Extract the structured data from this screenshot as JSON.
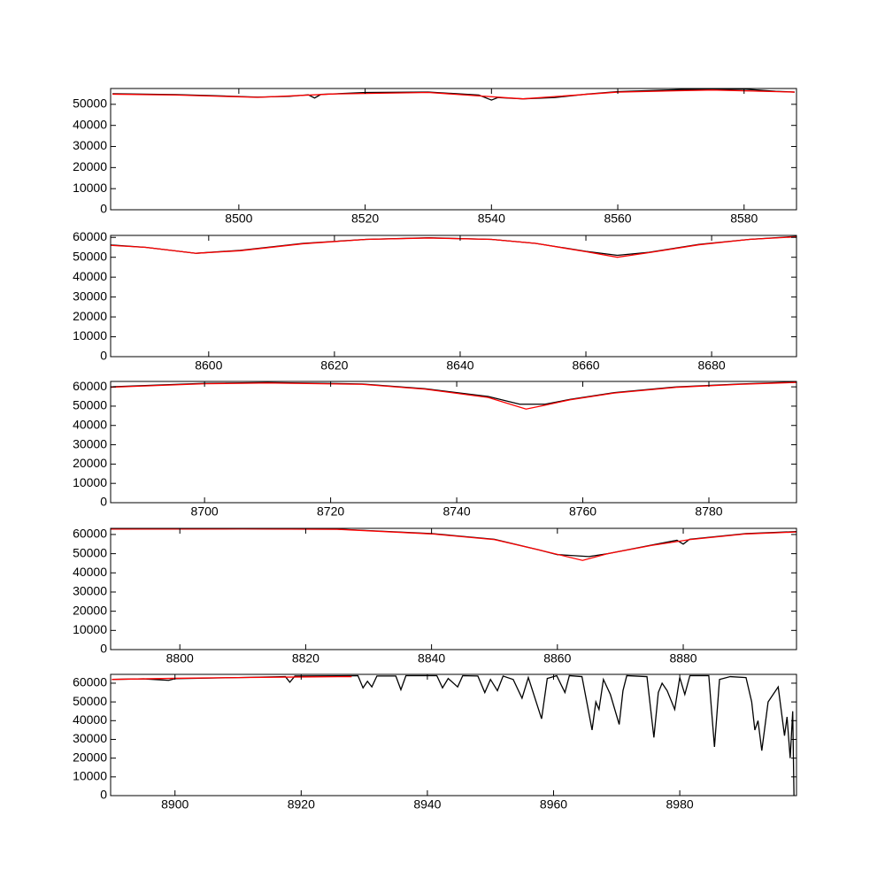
{
  "chart_data": [
    {
      "type": "line",
      "xlim": [
        8479.7,
        8588.3
      ],
      "ylim": [
        0,
        57500
      ],
      "xticks": [
        8500,
        8520,
        8540,
        8560,
        8580
      ],
      "yticks": [
        0,
        10000,
        20000,
        30000,
        40000,
        50000
      ],
      "series": [
        {
          "color": "#000000",
          "x": [
            8480,
            8490,
            8495,
            8503,
            8508,
            8511,
            8512,
            8513,
            8520,
            8530,
            8538,
            8540,
            8541,
            8545,
            8550,
            8555,
            8560,
            8570,
            8580,
            8585,
            8588
          ],
          "values": [
            55000,
            54600,
            54200,
            53400,
            53800,
            54500,
            53000,
            54700,
            55600,
            55800,
            54400,
            52000,
            53200,
            52600,
            53200,
            54800,
            56000,
            57000,
            57200,
            56200,
            55800
          ]
        },
        {
          "color": "#ff0000",
          "x": [
            8480,
            8490,
            8503,
            8515,
            8530,
            8545,
            8560,
            8575,
            8588
          ],
          "values": [
            54800,
            54400,
            53300,
            54900,
            55600,
            52600,
            55800,
            56800,
            55800
          ]
        }
      ]
    },
    {
      "type": "line",
      "xlim": [
        8584.4,
        8693.5
      ],
      "ylim": [
        0,
        61000
      ],
      "xticks": [
        8600,
        8620,
        8640,
        8660,
        8680
      ],
      "yticks": [
        0,
        10000,
        20000,
        30000,
        40000,
        50000,
        60000
      ],
      "series": [
        {
          "color": "#000000",
          "x": [
            8584.4,
            8590,
            8598,
            8605,
            8615,
            8625,
            8635,
            8645,
            8652,
            8660,
            8665,
            8670,
            8678,
            8686,
            8693.5
          ],
          "values": [
            56200,
            55000,
            52000,
            53500,
            57000,
            59000,
            59800,
            59000,
            57000,
            53000,
            51000,
            52500,
            56500,
            59000,
            60500
          ]
        },
        {
          "color": "#ff0000",
          "x": [
            8584.4,
            8590,
            8598,
            8605,
            8615,
            8625,
            8635,
            8645,
            8652,
            8660,
            8665,
            8670,
            8678,
            8686,
            8693.5
          ],
          "values": [
            56000,
            55000,
            52000,
            53300,
            56800,
            59000,
            59700,
            59000,
            57000,
            52800,
            50000,
            52300,
            56300,
            59000,
            60300
          ]
        }
      ]
    },
    {
      "type": "line",
      "xlim": [
        8685.1,
        8793.9
      ],
      "ylim": [
        0,
        62800
      ],
      "xticks": [
        8700,
        8720,
        8740,
        8760,
        8780
      ],
      "yticks": [
        0,
        10000,
        20000,
        30000,
        40000,
        50000,
        60000
      ],
      "series": [
        {
          "color": "#000000",
          "x": [
            8685.1,
            8700,
            8710,
            8725,
            8735,
            8745,
            8750,
            8754,
            8758,
            8765,
            8775,
            8785,
            8793.9
          ],
          "values": [
            60000,
            61800,
            62200,
            61500,
            59000,
            55000,
            51000,
            51000,
            53500,
            57000,
            60000,
            61500,
            62500
          ]
        },
        {
          "color": "#ff0000",
          "x": [
            8685.1,
            8700,
            8710,
            8725,
            8735,
            8745,
            8751,
            8754,
            8758,
            8765,
            8775,
            8785,
            8793.9
          ],
          "values": [
            59800,
            61600,
            62000,
            61300,
            58800,
            54500,
            48500,
            50500,
            53300,
            56800,
            59800,
            61300,
            62300
          ]
        }
      ]
    },
    {
      "type": "line",
      "xlim": [
        8789.0,
        8898.0
      ],
      "ylim": [
        0,
        63200
      ],
      "xticks": [
        8800,
        8820,
        8840,
        8860,
        8880
      ],
      "yticks": [
        0,
        10000,
        20000,
        30000,
        40000,
        50000,
        60000
      ],
      "series": [
        {
          "color": "#000000",
          "x": [
            8789,
            8810,
            8825,
            8840,
            8850,
            8857,
            8860,
            8865,
            8868,
            8875,
            8879,
            8880,
            8881,
            8890,
            8898
          ],
          "values": [
            63000,
            63000,
            62800,
            60500,
            57500,
            52000,
            49500,
            48500,
            50000,
            54500,
            57000,
            55000,
            57500,
            60500,
            61500
          ]
        },
        {
          "color": "#ff0000",
          "x": [
            8789,
            8810,
            8825,
            8840,
            8850,
            8857,
            8864,
            8868,
            8875,
            8881,
            8890,
            8898
          ],
          "values": [
            62800,
            62900,
            62700,
            60300,
            57300,
            52000,
            46500,
            50000,
            54300,
            57300,
            60300,
            61300
          ]
        }
      ]
    },
    {
      "type": "line",
      "xlim": [
        8889.8,
        8998.5
      ],
      "ylim": [
        0,
        64700
      ],
      "xticks": [
        8900,
        8920,
        8940,
        8960,
        8980
      ],
      "yticks": [
        0,
        10000,
        20000,
        30000,
        40000,
        50000,
        60000
      ],
      "series": [
        {
          "color": "#000000",
          "x": [
            8890,
            8895,
            8899,
            8900,
            8910,
            8917.5,
            8918.2,
            8919,
            8929,
            8929.8,
            8930.5,
            8931.2,
            8932,
            8935,
            8935.8,
            8936.6,
            8941.5,
            8942.4,
            8943.3,
            8944.8,
            8945.6,
            8948,
            8949.1,
            8950,
            8951.1,
            8952,
            8953.6,
            8955,
            8956,
            8958.1,
            8959,
            8960.5,
            8961.8,
            8962.5,
            8964.5,
            8966.1,
            8966.7,
            8967.2,
            8967.9,
            8969,
            8970.4,
            8971,
            8971.6,
            8974.8,
            8975.9,
            8976.6,
            8977.2,
            8978,
            8979.2,
            8980,
            8980.8,
            8981.6,
            8984.6,
            8985.5,
            8986.3,
            8988,
            8990.5,
            8991.4,
            8991.9,
            8992.4,
            8993,
            8994,
            8995.6,
            8996.6,
            8997,
            8997.5,
            8997.9,
            8998.1
          ],
          "values": [
            62000,
            62300,
            61500,
            62400,
            63000,
            63500,
            60500,
            63800,
            64000,
            57500,
            61000,
            58000,
            63800,
            63800,
            56500,
            64000,
            64000,
            57500,
            62500,
            58000,
            64000,
            63800,
            55000,
            62000,
            56000,
            63800,
            62000,
            52000,
            63000,
            41000,
            62500,
            64000,
            55000,
            64000,
            63500,
            35000,
            50000,
            46000,
            62000,
            54000,
            38000,
            56000,
            64000,
            63500,
            31000,
            55000,
            60000,
            56000,
            46000,
            63000,
            54000,
            64000,
            64000,
            26000,
            62000,
            63500,
            63000,
            50000,
            35000,
            40000,
            24000,
            50000,
            58000,
            32000,
            42000,
            20000,
            45000,
            0
          ]
        },
        {
          "color": "#ff0000",
          "x": [
            8890,
            8900,
            8910,
            8920,
            8928
          ],
          "values": [
            62000,
            62600,
            63000,
            63300,
            63500
          ]
        }
      ]
    }
  ]
}
